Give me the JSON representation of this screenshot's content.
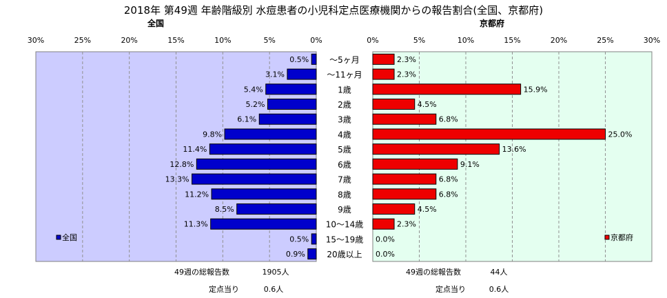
{
  "title": "2018年 第49週 年齢階級別 水痘患者の小児科定点医療機関からの報告割合(全国、京都府)",
  "chart_data": [
    {
      "type": "bar",
      "orientation": "horizontal",
      "title": "全国",
      "direction": "reversed",
      "xlim": [
        0,
        30
      ],
      "ticks": [
        "30%",
        "25%",
        "20%",
        "15%",
        "10%",
        "5%",
        "0%"
      ],
      "tick_values": [
        30,
        25,
        20,
        15,
        10,
        5,
        0
      ],
      "legend": "全国",
      "legend_position": "bottom-left",
      "color": "#0000cc",
      "background": "#ccccff",
      "values": [
        0.5,
        3.1,
        5.4,
        5.2,
        6.1,
        9.8,
        11.4,
        12.8,
        13.3,
        11.2,
        8.5,
        11.3,
        0.5,
        0.9
      ],
      "labels": [
        "0.5%",
        "3.1%",
        "5.4%",
        "5.2%",
        "6.1%",
        "9.8%",
        "11.4%",
        "12.8%",
        "13.3%",
        "11.2%",
        "8.5%",
        "11.3%",
        "0.5%",
        "0.9%"
      ]
    },
    {
      "type": "bar",
      "orientation": "horizontal",
      "title": "京都府",
      "direction": "normal",
      "xlim": [
        0,
        30
      ],
      "ticks": [
        "0%",
        "5%",
        "10%",
        "15%",
        "20%",
        "25%",
        "30%"
      ],
      "tick_values": [
        0,
        5,
        10,
        15,
        20,
        25,
        30
      ],
      "legend": "京都府",
      "legend_position": "bottom-right",
      "color": "#ee0000",
      "background": "#e4fff0",
      "values": [
        2.3,
        2.3,
        15.9,
        4.5,
        6.8,
        25.0,
        13.6,
        9.1,
        6.8,
        6.8,
        4.5,
        2.3,
        0.0,
        0.0
      ],
      "labels": [
        "2.3%",
        "2.3%",
        "15.9%",
        "4.5%",
        "6.8%",
        "25.0%",
        "13.6%",
        "9.1%",
        "6.8%",
        "6.8%",
        "4.5%",
        "2.3%",
        "0.0%",
        "0.0%"
      ]
    }
  ],
  "categories": [
    "～5ヶ月",
    "～11ヶ月",
    "1歳",
    "2歳",
    "3歳",
    "4歳",
    "5歳",
    "6歳",
    "7歳",
    "8歳",
    "9歳",
    "10～14歳",
    "15～19歳",
    "20歳以上"
  ],
  "footer": {
    "national_total_label": "49週の総報告数",
    "national_total_value": "1905人",
    "national_per_label": "定点当り",
    "national_per_value": "0.6人",
    "kyoto_total_label": "49週の総報告数",
    "kyoto_total_value": "44人",
    "kyoto_per_label": "定点当り",
    "kyoto_per_value": "0.6人"
  }
}
